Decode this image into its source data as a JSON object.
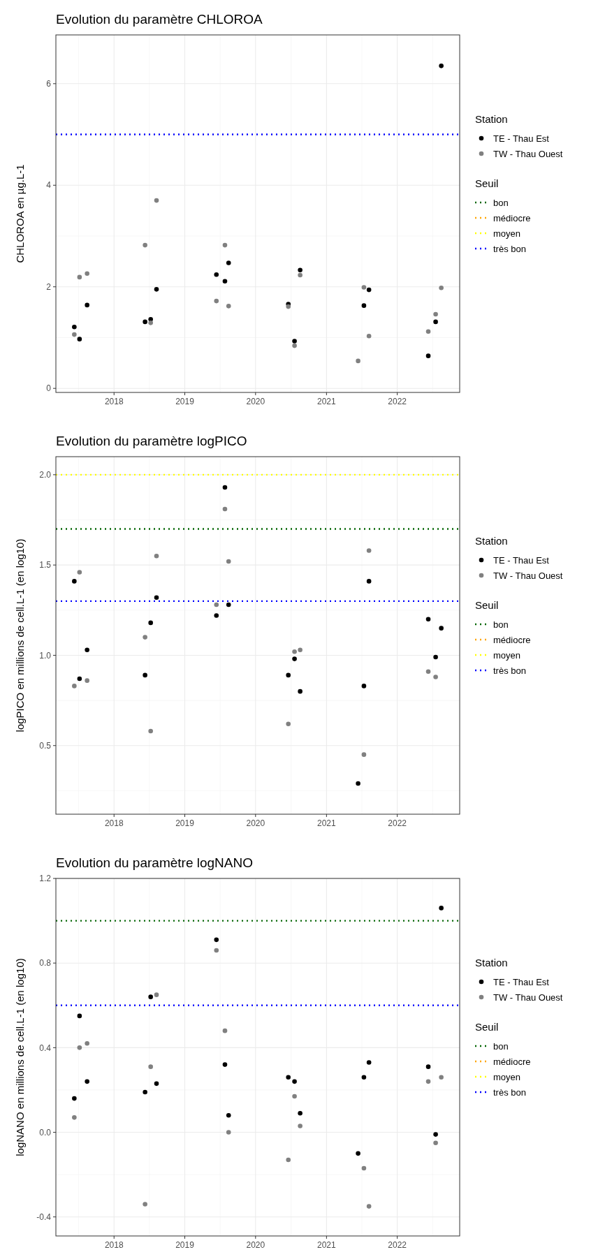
{
  "chart_data": [
    {
      "type": "scatter",
      "title": "Evolution du paramètre CHLOROA",
      "ylabel": "CHLOROA en µg.L-1",
      "legend_title": [
        "Station",
        "Seuil"
      ],
      "legend": "right",
      "grid": true,
      "marker": "circle",
      "x": [
        "2017-06-10",
        "2017-07-07",
        "2017-08-15",
        "2018-06-10",
        "2018-07-09",
        "2018-08-08",
        "2019-06-13",
        "2019-07-27",
        "2019-08-15",
        "2020-06-18",
        "2020-07-20",
        "2020-08-18",
        "2021-06-13",
        "2021-07-13",
        "2021-08-08",
        "2022-06-10",
        "2022-07-18",
        "2022-08-16"
      ],
      "xlim": [
        "2017-03-07",
        "2022-11-19"
      ],
      "xticks": [
        "2018",
        "2019",
        "2020",
        "2021",
        "2022"
      ],
      "ylim": [
        -0.08,
        6.96
      ],
      "yticks": [
        0,
        2,
        4,
        6
      ],
      "series": [
        {
          "name": "TE - Thau Est",
          "color": "#000000",
          "values": [
            1.21,
            0.97,
            1.64,
            1.31,
            1.36,
            1.95,
            2.24,
            2.11,
            2.47,
            1.66,
            0.93,
            2.33,
            null,
            1.63,
            1.94,
            0.64,
            1.31,
            6.35
          ]
        },
        {
          "name": "TW - Thau Ouest",
          "color": "#808080",
          "values": [
            1.06,
            2.19,
            2.26,
            2.82,
            1.29,
            3.7,
            1.72,
            2.82,
            1.62,
            1.61,
            0.84,
            2.23,
            0.54,
            1.99,
            1.03,
            1.12,
            1.46,
            1.98
          ]
        }
      ],
      "ref_lines": [
        {
          "axis": "y",
          "value": null,
          "label": "bon",
          "color": "#006400",
          "line_style": "dotted"
        },
        {
          "axis": "y",
          "value": null,
          "label": "médiocre",
          "color": "#ffa500",
          "line_style": "dotted"
        },
        {
          "axis": "y",
          "value": null,
          "label": "moyen",
          "color": "#ffff00",
          "line_style": "dotted"
        },
        {
          "axis": "y",
          "value": 5,
          "label": "très bon",
          "color": "#0000ff",
          "line_style": "dotted"
        }
      ]
    },
    {
      "type": "scatter",
      "title": "Evolution du paramètre logPICO",
      "ylabel": "logPICO en millions de cell.L-1 (en log10)",
      "legend_title": [
        "Station",
        "Seuil"
      ],
      "legend": "right",
      "grid": true,
      "marker": "circle",
      "x": [
        "2017-06-10",
        "2017-07-07",
        "2017-08-15",
        "2018-06-10",
        "2018-07-09",
        "2018-08-08",
        "2019-06-13",
        "2019-07-27",
        "2019-08-15",
        "2020-06-18",
        "2020-07-20",
        "2020-08-18",
        "2021-06-13",
        "2021-07-13",
        "2021-08-08",
        "2022-06-10",
        "2022-07-18",
        "2022-08-16"
      ],
      "xlim": [
        "2017-03-07",
        "2022-11-19"
      ],
      "xticks": [
        "2018",
        "2019",
        "2020",
        "2021",
        "2022"
      ],
      "ylim": [
        0.12,
        2.1
      ],
      "yticks": [
        {
          "value": 0.5,
          "label": "0.5"
        },
        {
          "value": 1,
          "label": "1.0"
        },
        {
          "value": 1.5,
          "label": "1.5"
        },
        {
          "value": 2,
          "label": "2.0"
        }
      ],
      "series": [
        {
          "name": "TE - Thau Est",
          "color": "#000000",
          "values": [
            1.41,
            0.87,
            1.03,
            0.89,
            1.18,
            1.32,
            1.22,
            1.93,
            1.28,
            0.89,
            0.98,
            0.8,
            0.29,
            0.83,
            1.41,
            1.2,
            0.99,
            1.15
          ]
        },
        {
          "name": "TW - Thau Ouest",
          "color": "#808080",
          "values": [
            0.83,
            1.46,
            0.86,
            1.1,
            0.58,
            1.55,
            1.28,
            1.81,
            1.52,
            0.62,
            1.02,
            1.03,
            null,
            0.45,
            1.58,
            0.91,
            0.88,
            null
          ]
        }
      ],
      "ref_lines": [
        {
          "axis": "y",
          "value": 1.7,
          "label": "bon",
          "color": "#006400",
          "line_style": "dotted"
        },
        {
          "axis": "y",
          "value": null,
          "label": "médiocre",
          "color": "#ffa500",
          "line_style": "dotted"
        },
        {
          "axis": "y",
          "value": 2,
          "label": "moyen",
          "color": "#ffff00",
          "line_style": "dotted"
        },
        {
          "axis": "y",
          "value": 1.3,
          "label": "très bon",
          "color": "#0000ff",
          "line_style": "dotted"
        }
      ]
    },
    {
      "type": "scatter",
      "title": "Evolution du paramètre logNANO",
      "ylabel": "logNANO en millions de cell.L-1 (en log10)",
      "legend_title": [
        "Station",
        "Seuil"
      ],
      "legend": "right",
      "grid": true,
      "marker": "circle",
      "x": [
        "2017-06-10",
        "2017-07-07",
        "2017-08-15",
        "2018-06-10",
        "2018-07-09",
        "2018-08-08",
        "2019-06-13",
        "2019-07-27",
        "2019-08-15",
        "2020-06-18",
        "2020-07-20",
        "2020-08-18",
        "2021-06-13",
        "2021-07-13",
        "2021-08-08",
        "2022-06-10",
        "2022-07-18",
        "2022-08-16"
      ],
      "xlim": [
        "2017-03-07",
        "2022-11-19"
      ],
      "xticks": [
        "2018",
        "2019",
        "2020",
        "2021",
        "2022"
      ],
      "ylim": [
        -0.49,
        1.2
      ],
      "yticks": [
        {
          "value": -0.4,
          "label": "-0.4"
        },
        {
          "value": 0,
          "label": "0.0"
        },
        {
          "value": 0.4,
          "label": "0.4"
        },
        {
          "value": 0.8,
          "label": "0.8"
        },
        {
          "value": 1.2,
          "label": "1.2"
        }
      ],
      "series": [
        {
          "name": "TE - Thau Est",
          "color": "#000000",
          "values": [
            0.16,
            0.55,
            0.24,
            0.19,
            0.64,
            0.23,
            0.91,
            0.32,
            0.08,
            0.26,
            0.24,
            0.09,
            -0.1,
            0.26,
            0.33,
            0.31,
            -0.01,
            1.06
          ]
        },
        {
          "name": "TW - Thau Ouest",
          "color": "#808080",
          "values": [
            0.07,
            0.4,
            0.42,
            -0.34,
            0.31,
            0.65,
            0.86,
            0.48,
            0,
            -0.13,
            0.17,
            0.03,
            null,
            -0.17,
            -0.35,
            0.24,
            -0.05,
            0.26
          ]
        }
      ],
      "ref_lines": [
        {
          "axis": "y",
          "value": 1,
          "label": "bon",
          "color": "#006400",
          "line_style": "dotted"
        },
        {
          "axis": "y",
          "value": null,
          "label": "médiocre",
          "color": "#ffa500",
          "line_style": "dotted"
        },
        {
          "axis": "y",
          "value": null,
          "label": "moyen",
          "color": "#ffff00",
          "line_style": "dotted"
        },
        {
          "axis": "y",
          "value": 0.6,
          "label": "très bon",
          "color": "#0000ff",
          "line_style": "dotted"
        }
      ]
    }
  ]
}
